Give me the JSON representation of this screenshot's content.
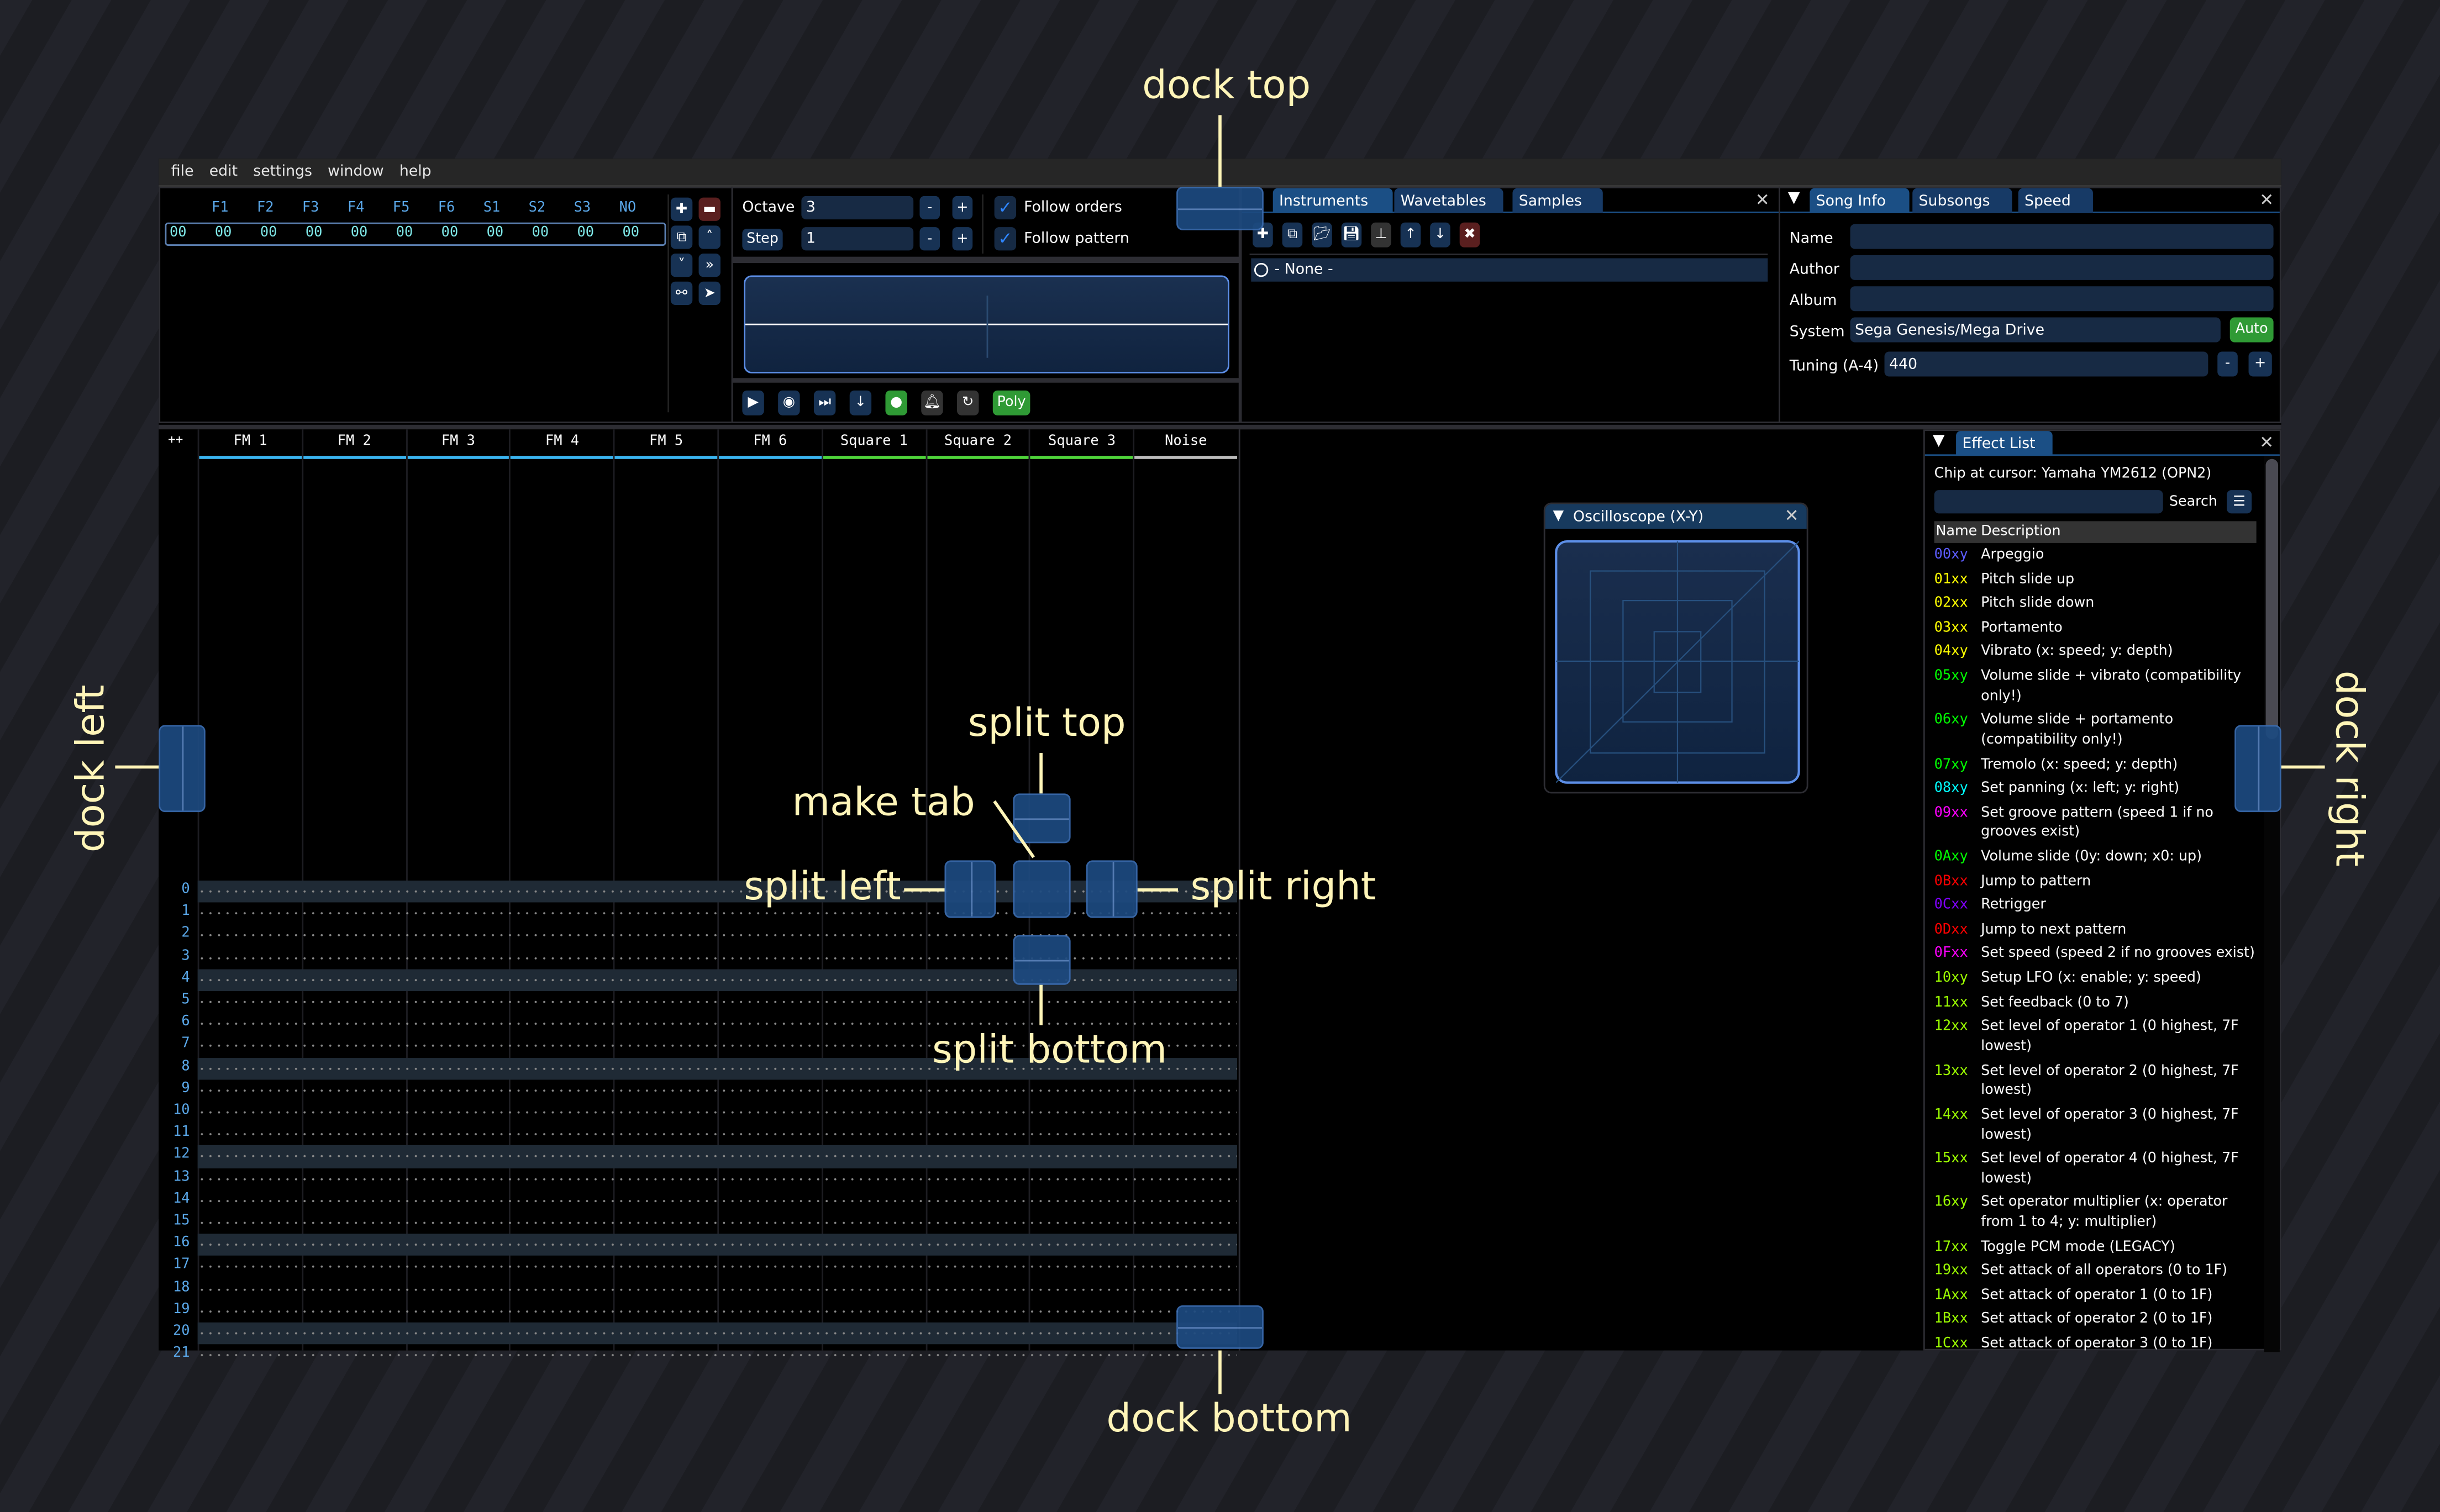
{
  "menu": [
    "file",
    "edit",
    "settings",
    "window",
    "help"
  ],
  "orders": {
    "channels": [
      "F1",
      "F2",
      "F3",
      "F4",
      "F5",
      "F6",
      "S1",
      "S2",
      "S3",
      "NO"
    ],
    "row": [
      "00",
      "00",
      "00",
      "00",
      "00",
      "00",
      "00",
      "00",
      "00",
      "00",
      "00"
    ]
  },
  "controls": {
    "octave_label": "Octave",
    "octave_value": "3",
    "step_label": "Step",
    "step_value": "1",
    "minus": "-",
    "plus": "+",
    "follow_orders": "Follow orders",
    "follow_pattern": "Follow pattern",
    "poly": "Poly"
  },
  "instruments": {
    "tabs": [
      "Instruments",
      "Wavetables",
      "Samples"
    ],
    "items": [
      "- None -"
    ]
  },
  "song_info": {
    "tabs": [
      "Song Info",
      "Subsongs",
      "Speed"
    ],
    "name_label": "Name",
    "name_value": "",
    "author_label": "Author",
    "author_value": "",
    "album_label": "Album",
    "album_value": "",
    "system_label": "System",
    "system_value": "Sega Genesis/Mega Drive",
    "auto": "Auto",
    "tuning_label": "Tuning (A-4)",
    "tuning_value": "440"
  },
  "pattern": {
    "corner": "++",
    "channels": [
      {
        "name": "FM 1",
        "color": "#3ab4f0"
      },
      {
        "name": "FM 2",
        "color": "#3ab4f0"
      },
      {
        "name": "FM 3",
        "color": "#3ab4f0"
      },
      {
        "name": "FM 4",
        "color": "#3ab4f0"
      },
      {
        "name": "FM 5",
        "color": "#3ab4f0"
      },
      {
        "name": "FM 6",
        "color": "#3ab4f0"
      },
      {
        "name": "Square 1",
        "color": "#4fd43a"
      },
      {
        "name": "Square 2",
        "color": "#4fd43a"
      },
      {
        "name": "Square 3",
        "color": "#4fd43a"
      },
      {
        "name": "Noise",
        "color": "#bbbbbb"
      }
    ],
    "rows": [
      "0",
      "1",
      "2",
      "3",
      "4",
      "5",
      "6",
      "7",
      "8",
      "9",
      "10",
      "11",
      "12",
      "13",
      "14",
      "15",
      "16",
      "17",
      "18",
      "19",
      "20",
      "21"
    ],
    "highlight_every": 4
  },
  "oscilloscope": {
    "title": "Oscilloscope (X-Y)"
  },
  "effect_list": {
    "title": "Effect List",
    "chip": "Chip at cursor: Yamaha YM2612 (OPN2)",
    "search_label": "Search",
    "search_value": "",
    "col_name": "Name",
    "col_desc": "Description",
    "items": [
      {
        "code": "00xy",
        "desc": "Arpeggio",
        "color": "#5c5cff"
      },
      {
        "code": "01xx",
        "desc": "Pitch slide up",
        "color": "#ffff00"
      },
      {
        "code": "02xx",
        "desc": "Pitch slide down",
        "color": "#ffff00"
      },
      {
        "code": "03xx",
        "desc": "Portamento",
        "color": "#ffff00"
      },
      {
        "code": "04xy",
        "desc": "Vibrato (x: speed; y: depth)",
        "color": "#ffff00"
      },
      {
        "code": "05xy",
        "desc": "Volume slide + vibrato (compatibility only!)",
        "color": "#00ff00"
      },
      {
        "code": "06xy",
        "desc": "Volume slide + portamento (compatibility only!)",
        "color": "#00ff00"
      },
      {
        "code": "07xy",
        "desc": "Tremolo (x: speed; y: depth)",
        "color": "#00ff00"
      },
      {
        "code": "08xy",
        "desc": "Set panning (x: left; y: right)",
        "color": "#00ffff"
      },
      {
        "code": "09xx",
        "desc": "Set groove pattern (speed 1 if no grooves exist)",
        "color": "#ff00ff"
      },
      {
        "code": "0Axy",
        "desc": "Volume slide (0y: down; x0: up)",
        "color": "#00ff00"
      },
      {
        "code": "0Bxx",
        "desc": "Jump to pattern",
        "color": "#ff0000"
      },
      {
        "code": "0Cxx",
        "desc": "Retrigger",
        "color": "#8000ff"
      },
      {
        "code": "0Dxx",
        "desc": "Jump to next pattern",
        "color": "#ff0000"
      },
      {
        "code": "0Fxx",
        "desc": "Set speed (speed 2 if no grooves exist)",
        "color": "#ff00ff"
      },
      {
        "code": "10xy",
        "desc": "Setup LFO (x: enable; y: speed)",
        "color": "#9cff00"
      },
      {
        "code": "11xx",
        "desc": "Set feedback (0 to 7)",
        "color": "#9cff00"
      },
      {
        "code": "12xx",
        "desc": "Set level of operator 1 (0 highest, 7F lowest)",
        "color": "#9cff00"
      },
      {
        "code": "13xx",
        "desc": "Set level of operator 2 (0 highest, 7F lowest)",
        "color": "#9cff00"
      },
      {
        "code": "14xx",
        "desc": "Set level of operator 3 (0 highest, 7F lowest)",
        "color": "#9cff00"
      },
      {
        "code": "15xx",
        "desc": "Set level of operator 4 (0 highest, 7F lowest)",
        "color": "#9cff00"
      },
      {
        "code": "16xy",
        "desc": "Set operator multiplier (x: operator from 1 to 4; y: multiplier)",
        "color": "#9cff00"
      },
      {
        "code": "17xx",
        "desc": "Toggle PCM mode (LEGACY)",
        "color": "#9cff00"
      },
      {
        "code": "19xx",
        "desc": "Set attack of all operators (0 to 1F)",
        "color": "#9cff00"
      },
      {
        "code": "1Axx",
        "desc": "Set attack of operator 1 (0 to 1F)",
        "color": "#9cff00"
      },
      {
        "code": "1Bxx",
        "desc": "Set attack of operator 2 (0 to 1F)",
        "color": "#9cff00"
      },
      {
        "code": "1Cxx",
        "desc": "Set attack of operator 3 (0 to 1F)",
        "color": "#9cff00"
      }
    ]
  },
  "annotations": {
    "dock_top": "dock top",
    "dock_bottom": "dock bottom",
    "dock_left": "dock left",
    "dock_right": "dock right",
    "split_top": "split top",
    "split_bottom": "split bottom",
    "split_left": "split left",
    "split_right": "split right",
    "make_tab": "make tab"
  }
}
